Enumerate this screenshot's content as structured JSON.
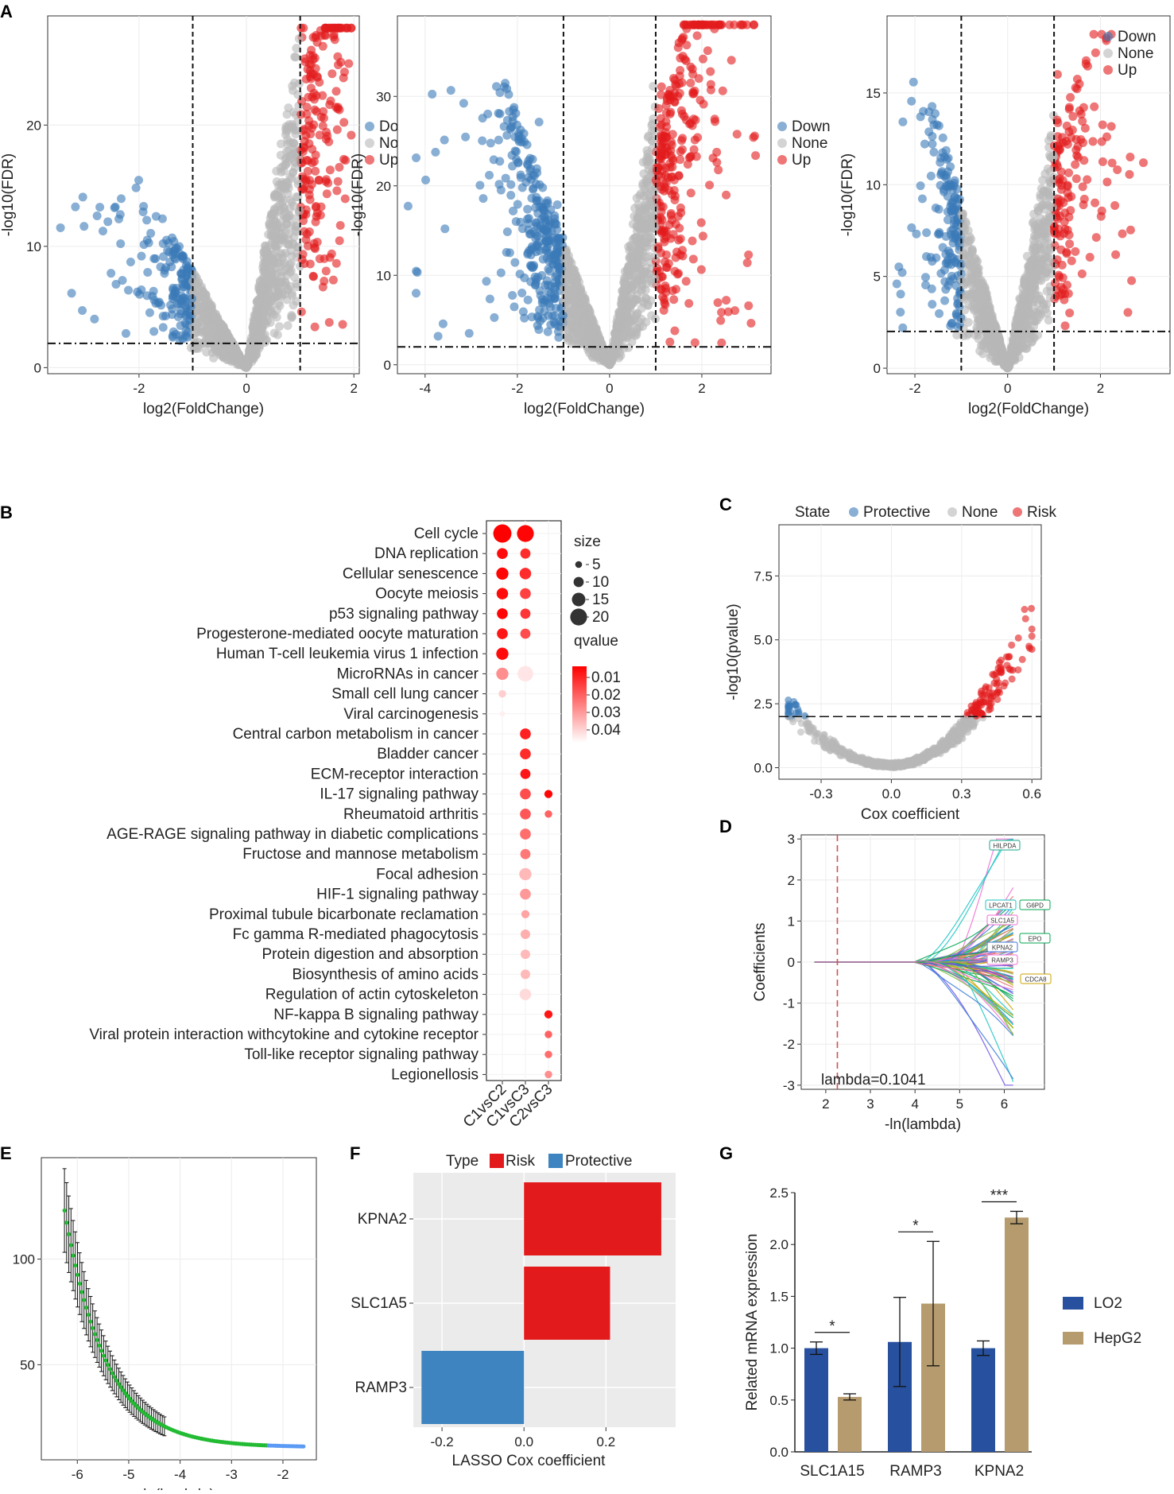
{
  "panels": {
    "A": "A",
    "B": "B",
    "C": "C",
    "D": "D",
    "E": "E",
    "F": "F",
    "G": "G"
  },
  "colors": {
    "down": "#3a7ab8",
    "none": "#b8b8b8",
    "up": "#e31a1c",
    "risk": "#e31a1c",
    "protective": "#3d84c0",
    "lo2": "#27519e",
    "hepg2": "#b59b6e",
    "grid": "#ebebeb",
    "panel_bg": "#ebebeb"
  },
  "chart_data": [
    {
      "id": "A1",
      "type": "scatter",
      "title": "",
      "xlabel": "log2(FoldChange)",
      "ylabel": "-log10(FDR)",
      "xlim": [
        -3.7,
        2.1
      ],
      "ylim": [
        -0.5,
        29
      ],
      "xticks": [
        -2,
        0,
        2
      ],
      "yticks": [
        0,
        10,
        20
      ],
      "thresholds": {
        "x": [
          -1,
          1
        ],
        "y": 2
      },
      "legend": {
        "position": "right",
        "entries": [
          "Down",
          "None",
          "Up"
        ]
      }
    },
    {
      "id": "A2",
      "type": "scatter",
      "title": "",
      "xlabel": "log2(FoldChange)",
      "ylabel": "-log10(FDR)",
      "xlim": [
        -4.6,
        3.5
      ],
      "ylim": [
        -1,
        39
      ],
      "xticks": [
        -4,
        -2,
        0,
        2
      ],
      "yticks": [
        0,
        10,
        20,
        30
      ],
      "thresholds": {
        "x": [
          -1,
          1
        ],
        "y": 2
      },
      "legend": {
        "position": "right",
        "entries": [
          "Down",
          "None",
          "Up"
        ]
      }
    },
    {
      "id": "A3",
      "type": "scatter",
      "title": "",
      "xlabel": "log2(FoldChange)",
      "ylabel": "-log10(FDR)",
      "xlim": [
        -2.6,
        3.5
      ],
      "ylim": [
        -0.3,
        19.2
      ],
      "xticks": [
        -2,
        0,
        2
      ],
      "yticks": [
        0,
        5,
        10,
        15
      ],
      "thresholds": {
        "x": [
          -1,
          1
        ],
        "y": 2
      },
      "legend": {
        "position": "top-right",
        "entries": [
          "Down",
          "None",
          "Up"
        ]
      }
    },
    {
      "id": "B",
      "type": "dot",
      "columns": [
        "C1vsC2",
        "C1vsC3",
        "C2vsC3"
      ],
      "pathways": [
        "Cell cycle",
        "DNA replication",
        "Cellular senescence",
        "Oocyte meiosis",
        "p53 signaling pathway",
        "Progesterone-mediated oocyte maturation",
        "Human T-cell leukemia virus 1 infection",
        "MicroRNAs in cancer",
        "Small cell lung cancer",
        "Viral carcinogenesis",
        "Central carbon metabolism in cancer",
        "Bladder cancer",
        "ECM-receptor interaction",
        "IL-17 signaling pathway",
        "Rheumatoid arthritis",
        "AGE-RAGE signaling pathway in diabetic complications",
        "Fructose and mannose metabolism",
        "Focal adhesion",
        "HIF-1 signaling pathway",
        "Proximal tubule bicarbonate reclamation",
        "Fc gamma R-mediated phagocytosis",
        "Protein digestion and absorption",
        "Biosynthesis of amino acids",
        "Regulation of actin cytoskeleton",
        "NF-kappa B signaling pathway",
        "Viral protein interaction withcytokine and cytokine receptor",
        "Toll-like receptor signaling pathway",
        "Legionellosis"
      ],
      "points": [
        [
          0,
          0,
          22,
          0.002
        ],
        [
          0,
          1,
          20,
          0.003
        ],
        [
          1,
          0,
          11,
          0.004
        ],
        [
          1,
          1,
          10,
          0.01
        ],
        [
          2,
          0,
          13,
          0.003
        ],
        [
          2,
          1,
          12,
          0.01
        ],
        [
          3,
          0,
          12,
          0.004
        ],
        [
          3,
          1,
          11,
          0.014
        ],
        [
          4,
          0,
          11,
          0.003
        ],
        [
          4,
          1,
          10,
          0.012
        ],
        [
          5,
          0,
          11,
          0.006
        ],
        [
          5,
          1,
          10,
          0.016
        ],
        [
          6,
          0,
          13,
          0.004
        ],
        [
          7,
          0,
          13,
          0.028
        ],
        [
          7,
          1,
          18,
          0.044
        ],
        [
          8,
          0,
          6,
          0.04
        ],
        [
          9,
          0,
          3,
          0.046
        ],
        [
          10,
          1,
          11,
          0.008
        ],
        [
          11,
          1,
          11,
          0.01
        ],
        [
          12,
          1,
          10,
          0.006
        ],
        [
          13,
          1,
          11,
          0.016
        ],
        [
          13,
          2,
          7,
          0.003
        ],
        [
          14,
          1,
          11,
          0.018
        ],
        [
          14,
          2,
          6,
          0.02
        ],
        [
          15,
          1,
          11,
          0.022
        ],
        [
          16,
          1,
          10,
          0.024
        ],
        [
          17,
          1,
          13,
          0.036
        ],
        [
          18,
          1,
          11,
          0.03
        ],
        [
          19,
          1,
          7,
          0.032
        ],
        [
          20,
          1,
          9,
          0.034
        ],
        [
          21,
          1,
          9,
          0.036
        ],
        [
          22,
          1,
          9,
          0.036
        ],
        [
          23,
          1,
          12,
          0.042
        ],
        [
          24,
          2,
          7,
          0.006
        ],
        [
          25,
          2,
          6,
          0.02
        ],
        [
          26,
          2,
          6,
          0.022
        ],
        [
          27,
          2,
          6,
          0.028
        ]
      ],
      "size_legend": {
        "title": "size",
        "values": [
          5,
          10,
          15,
          20
        ]
      },
      "color_legend": {
        "title": "qvalue",
        "values": [
          "0.01",
          "0.02",
          "0.03",
          "0.04"
        ]
      }
    },
    {
      "id": "C",
      "type": "scatter",
      "xlabel": "Cox coefficient",
      "ylabel": "-log10(pvalue)",
      "xlim": [
        -0.48,
        0.64
      ],
      "ylim": [
        -0.45,
        9.5
      ],
      "xticks": [
        "-0.3",
        "0.0",
        "0.3",
        "0.6"
      ],
      "yticks": [
        "0.0",
        "2.5",
        "5.0",
        "7.5"
      ],
      "threshold_y": 2,
      "legend": {
        "title": "State",
        "position": "top",
        "entries": [
          "Protective",
          "None",
          "Risk"
        ]
      }
    },
    {
      "id": "D",
      "type": "line",
      "xlabel": "-ln(lambda)",
      "ylabel": "Coefficients",
      "xlim": [
        1.45,
        6.9
      ],
      "ylim": [
        -3.1,
        3.1
      ],
      "xticks": [
        2,
        3,
        4,
        5,
        6
      ],
      "yticks": [
        -3,
        -2,
        -1,
        0,
        1,
        2,
        3
      ],
      "vline": 2.26,
      "annotation": "lambda=0.1041",
      "highlighted_genes": [
        "HILPDA",
        "LPCAT1",
        "G6PD",
        "SLC1A5",
        "EPO",
        "KPNA2",
        "RAMP3",
        "CDCA8"
      ]
    },
    {
      "id": "E",
      "type": "errorbar",
      "xlabel": "ln(lambda)",
      "ylabel": "",
      "xlim": [
        -6.7,
        -1.35
      ],
      "ylim": [
        5,
        148
      ],
      "xticks": [
        -6,
        -5,
        -4,
        -3,
        -2
      ],
      "yticks": [
        50,
        100
      ]
    },
    {
      "id": "F",
      "type": "bar",
      "orientation": "horizontal",
      "categories": [
        "KPNA2",
        "SLC1A5",
        "RAMP3"
      ],
      "values": [
        0.335,
        0.21,
        -0.25
      ],
      "types": [
        "Risk",
        "Risk",
        "Protective"
      ],
      "xlabel": "LASSO Cox coefficient",
      "xlim": [
        -0.27,
        0.37
      ],
      "xticks": [
        "-0.2",
        "0.0",
        "0.2"
      ],
      "legend": {
        "title": "Type",
        "entries": [
          "Risk",
          "Protective"
        ]
      }
    },
    {
      "id": "G",
      "type": "bar",
      "categories": [
        "SLC1A15",
        "RAMP3",
        "KPNA2"
      ],
      "series": [
        {
          "name": "LO2",
          "values": [
            1.0,
            1.06,
            1.0
          ],
          "err": [
            0.06,
            0.43,
            0.07
          ]
        },
        {
          "name": "HepG2",
          "values": [
            0.53,
            1.43,
            2.26
          ],
          "err": [
            0.03,
            0.6,
            0.06
          ]
        }
      ],
      "significance": [
        "*",
        "*",
        "***"
      ],
      "ylabel": "Related mRNA expression",
      "ylim": [
        0,
        2.5
      ],
      "yticks": [
        "0.0",
        "0.5",
        "1.0",
        "1.5",
        "2.0",
        "2.5"
      ]
    }
  ]
}
